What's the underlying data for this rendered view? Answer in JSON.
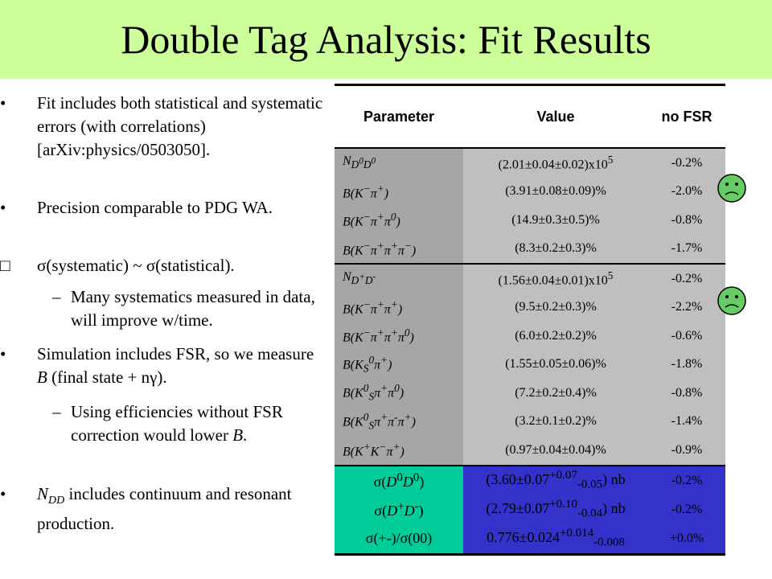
{
  "slide": {
    "title": "Double Tag Analysis: Fit Results"
  },
  "bullets": [
    {
      "marker": "•",
      "text": "Fit includes both statistical and systematic errors (with correlations) [arXiv:physics/0503050].",
      "level": 1
    },
    {
      "marker": "•",
      "text": "Precision comparable to PDG WA.",
      "level": 1
    },
    {
      "marker": "",
      "text": "σ(systematic) ~ σ(statistical).",
      "level": 1
    },
    {
      "marker": "–",
      "text": "Many systematics measured in data, will improve w/time.",
      "level": 2
    },
    {
      "marker": "•",
      "text": "Simulation includes FSR, so we measure B (final state + nγ).",
      "level": 1
    },
    {
      "marker": "–",
      "text": "Using efficiencies without FSR correction would lower B.",
      "level": 2
    },
    {
      "marker": "•",
      "text": "N DD includes continuum and resonant production.",
      "level": 1
    }
  ],
  "table": {
    "headers": [
      "Parameter",
      "Value",
      "no FSR"
    ],
    "rows": [
      {
        "param": "N D0D0",
        "value": "(2.01±0.04±0.02)x10 5",
        "nofsr": "-0.2%",
        "group": "gray"
      },
      {
        "param": "B(K−π+)",
        "value": "(3.91±0.08±0.09)%",
        "nofsr": "-2.0%",
        "group": "gray"
      },
      {
        "param": "B(K−π+π0)",
        "value": "(14.9±0.3±0.5)%",
        "nofsr": "-0.8%",
        "group": "gray"
      },
      {
        "param": "B(K−π+π+π−)",
        "value": "(8.3±0.2±0.3)%",
        "nofsr": "-1.7%",
        "group": "gray"
      },
      {
        "param": "N D+D-",
        "value": "(1.56±0.04±0.01)x10 5",
        "nofsr": "-0.2%",
        "group": "gray"
      },
      {
        "param": "B(K−π+π+)",
        "value": "(9.5±0.2±0.3)%",
        "nofsr": "-2.2%",
        "group": "gray"
      },
      {
        "param": "B(K−π+π+π0)",
        "value": "(6.0±0.2±0.2)%",
        "nofsr": "-0.6%",
        "group": "gray"
      },
      {
        "param": "B(KS0π+)",
        "value": "(1.55±0.05±0.06)%",
        "nofsr": "-1.8%",
        "group": "gray"
      },
      {
        "param": "B(K0Sπ+π0)",
        "value": "(7.2±0.2±0.4)%",
        "nofsr": "-0.8%",
        "group": "gray"
      },
      {
        "param": "B(K0Sπ+π-π+)",
        "value": "(3.2±0.1±0.2)%",
        "nofsr": "-1.4%",
        "group": "gray"
      },
      {
        "param": "B(K+K−π+)",
        "value": "(0.97±0.04±0.04)%",
        "nofsr": "-0.9%",
        "group": "gray"
      },
      {
        "param": "σ(D0D0)",
        "value": "(3.60±0.07+0.07-0.05) nb",
        "nofsr": "-0.2%",
        "group": "teal"
      },
      {
        "param": "σ(D+D-)",
        "value": "(2.79±0.07+0.10-0.04) nb",
        "nofsr": "-0.2%",
        "group": "teal"
      },
      {
        "param": "σ(+-)/σ(00)",
        "value": "0.776±0.024+0.014-0.008",
        "nofsr": "+0.0%",
        "group": "teal"
      }
    ]
  },
  "icons": [
    "frown-face-icon",
    "frown-face-icon"
  ],
  "colors": {
    "title_bg": "#ccff99",
    "gray_cell": "#a6a6a6",
    "teal_cell": "#00cc99",
    "blue_cell": "#3333cc",
    "face": "#66cc66"
  }
}
